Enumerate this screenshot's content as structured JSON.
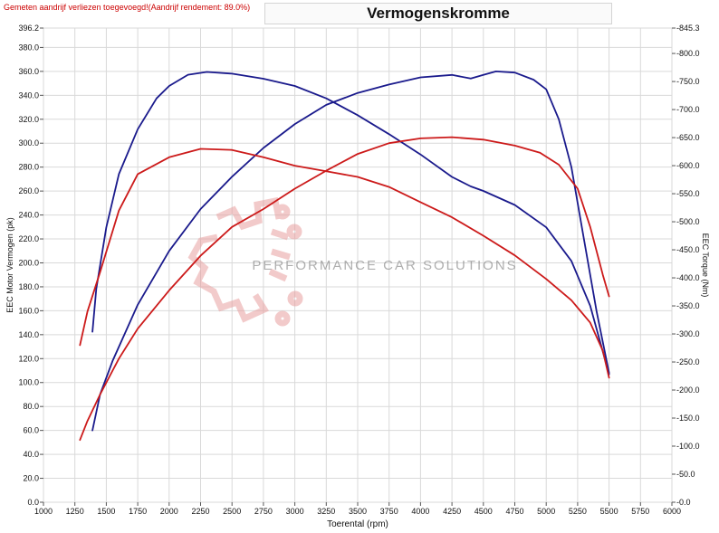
{
  "header": {
    "notice": "Gemeten aandrijf verliezen toegevoegd!(Aandrijf rendement: 89.0%)",
    "title": "Vermogenskromme"
  },
  "watermark": {
    "text": "PERFORMANCE CAR SOLUTIONS",
    "icon": "gear-circuit-icon"
  },
  "colors": {
    "tuned": "#1a1a8c",
    "stock": "#cc1a1a",
    "notice": "#cc0000",
    "grid": "#d9d9d9",
    "watermark": "#e8a0a0"
  },
  "chart_data": {
    "type": "line",
    "title": "Vermogenskromme",
    "xlabel": "Toerental (rpm)",
    "ylabel": "EEC Motor Vermogen (pk)",
    "y2label": "EEC Torque (Nm)",
    "xlim": [
      1000,
      6000
    ],
    "ylim": [
      0,
      396.2
    ],
    "y2lim": [
      0,
      845.3
    ],
    "grid": true,
    "x_ticks": [
      "1000",
      "1250",
      "1500",
      "1750",
      "2000",
      "2250",
      "2500",
      "2750",
      "3000",
      "3250",
      "3500",
      "3750",
      "4000",
      "4250",
      "4500",
      "4750",
      "5000",
      "5250",
      "5500",
      "5750",
      "6000"
    ],
    "y_ticks": [
      "0.0",
      "20.0",
      "40.0",
      "60.0",
      "80.0",
      "100.0",
      "120.0",
      "140.0",
      "160.0",
      "180.0",
      "200.0",
      "220.0",
      "240.0",
      "260.0",
      "280.0",
      "300.0",
      "320.0",
      "340.0",
      "360.0",
      "380.0",
      "396.2"
    ],
    "y2_ticks": [
      "0.0",
      "50.0",
      "100.0",
      "150.0",
      "200.0",
      "250.0",
      "300.0",
      "350.0",
      "400.0",
      "450.0",
      "500.0",
      "550.0",
      "600.0",
      "650.0",
      "700.0",
      "750.0",
      "800.0",
      "845.3"
    ],
    "series": [
      {
        "color": "#1a1a8c",
        "axis": "left",
        "points": [
          [
            1390,
            60
          ],
          [
            1450,
            90
          ],
          [
            1550,
            118
          ],
          [
            1750,
            165
          ],
          [
            2000,
            210
          ],
          [
            2250,
            245
          ],
          [
            2500,
            272
          ],
          [
            2750,
            296
          ],
          [
            3000,
            316
          ],
          [
            3250,
            332
          ],
          [
            3500,
            342
          ],
          [
            3750,
            349
          ],
          [
            4000,
            355
          ],
          [
            4250,
            357
          ],
          [
            4400,
            354
          ],
          [
            4500,
            357
          ],
          [
            4600,
            360
          ],
          [
            4750,
            359
          ],
          [
            4900,
            353
          ],
          [
            5000,
            345
          ],
          [
            5100,
            320
          ],
          [
            5200,
            280
          ],
          [
            5300,
            220
          ],
          [
            5400,
            160
          ],
          [
            5500,
            108
          ]
        ]
      },
      {
        "color": "#1a1a8c",
        "axis": "right",
        "points": [
          [
            1390,
            304
          ],
          [
            1420,
            380
          ],
          [
            1500,
            490
          ],
          [
            1600,
            585
          ],
          [
            1750,
            665
          ],
          [
            1900,
            720
          ],
          [
            2000,
            742
          ],
          [
            2150,
            762
          ],
          [
            2300,
            767
          ],
          [
            2500,
            764
          ],
          [
            2750,
            755
          ],
          [
            3000,
            742
          ],
          [
            3250,
            720
          ],
          [
            3500,
            690
          ],
          [
            3750,
            656
          ],
          [
            4000,
            620
          ],
          [
            4250,
            580
          ],
          [
            4400,
            563
          ],
          [
            4500,
            555
          ],
          [
            4750,
            530
          ],
          [
            5000,
            490
          ],
          [
            5200,
            430
          ],
          [
            5350,
            350
          ],
          [
            5500,
            228
          ]
        ]
      },
      {
        "color": "#cc1a1a",
        "axis": "left",
        "points": [
          [
            1290,
            52
          ],
          [
            1350,
            68
          ],
          [
            1450,
            90
          ],
          [
            1600,
            120
          ],
          [
            1750,
            145
          ],
          [
            2000,
            177
          ],
          [
            2250,
            206
          ],
          [
            2500,
            230
          ],
          [
            2750,
            245
          ],
          [
            3000,
            262
          ],
          [
            3250,
            277
          ],
          [
            3500,
            291
          ],
          [
            3750,
            300
          ],
          [
            4000,
            304
          ],
          [
            4250,
            305
          ],
          [
            4500,
            303
          ],
          [
            4750,
            298
          ],
          [
            4950,
            292
          ],
          [
            5100,
            282
          ],
          [
            5250,
            262
          ],
          [
            5350,
            230
          ],
          [
            5450,
            190
          ],
          [
            5500,
            172
          ]
        ]
      },
      {
        "color": "#cc1a1a",
        "axis": "right",
        "points": [
          [
            1290,
            280
          ],
          [
            1350,
            340
          ],
          [
            1450,
            410
          ],
          [
            1600,
            520
          ],
          [
            1750,
            585
          ],
          [
            2000,
            615
          ],
          [
            2250,
            630
          ],
          [
            2500,
            628
          ],
          [
            2750,
            615
          ],
          [
            3000,
            600
          ],
          [
            3250,
            590
          ],
          [
            3500,
            580
          ],
          [
            3750,
            562
          ],
          [
            4000,
            535
          ],
          [
            4250,
            508
          ],
          [
            4500,
            475
          ],
          [
            4750,
            440
          ],
          [
            5000,
            398
          ],
          [
            5200,
            360
          ],
          [
            5350,
            320
          ],
          [
            5450,
            270
          ],
          [
            5500,
            222
          ]
        ]
      }
    ]
  }
}
